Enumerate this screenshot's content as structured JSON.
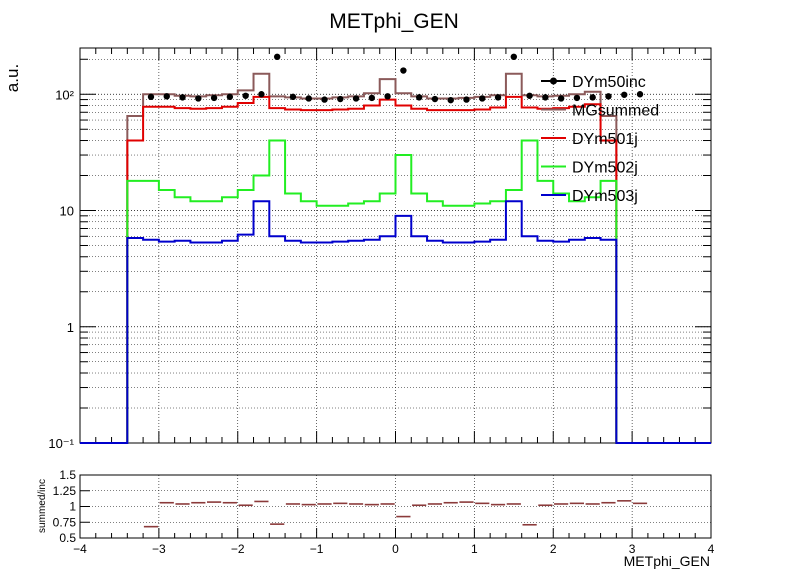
{
  "chart_data": [
    {
      "type": "line",
      "title": "METphi_GEN",
      "ylabel": "a.u.",
      "xlabel": "",
      "xlim": [
        -4,
        4
      ],
      "ylim": [
        0.1,
        250
      ],
      "yscale": "log",
      "grid": true,
      "legend_position": "top-right",
      "x_ticks": [
        -4,
        -3,
        -2,
        -1,
        0,
        1,
        2,
        3,
        4
      ],
      "x_tick_labels": [
        "−4",
        "−3",
        "−2",
        "−1",
        "0",
        "1",
        "2",
        "3",
        "4"
      ],
      "y_ticks": [
        0.1,
        1,
        10,
        100
      ],
      "y_tick_labels": [
        "10⁻¹",
        "1",
        "10",
        "10²"
      ],
      "bin_edges": [
        -4.0,
        -3.8,
        -3.6,
        -3.4,
        -3.2,
        -3.0,
        -2.8,
        -2.6,
        -2.4,
        -2.2,
        -2.0,
        -1.8,
        -1.6,
        -1.4,
        -1.2,
        -1.0,
        -0.8,
        -0.6,
        -0.4,
        -0.2,
        0.0,
        0.2,
        0.4,
        0.6,
        0.8,
        1.0,
        1.2,
        1.4,
        1.6,
        1.8,
        2.0,
        2.2,
        2.4,
        2.6,
        2.8,
        3.0,
        3.2,
        3.4,
        3.6,
        3.8,
        4.0
      ],
      "series": [
        {
          "name": "DYm50inc",
          "color": "#000000",
          "style": "points",
          "x": [
            -3.1,
            -2.9,
            -2.7,
            -2.5,
            -2.3,
            -2.1,
            -1.9,
            -1.7,
            -1.5,
            -1.3,
            -1.1,
            -0.9,
            -0.7,
            -0.5,
            -0.3,
            -0.1,
            0.1,
            0.3,
            0.5,
            0.7,
            0.9,
            1.1,
            1.3,
            1.5,
            1.7,
            1.9,
            2.1,
            2.3,
            2.5,
            2.7,
            2.9,
            3.1
          ],
          "values": [
            95,
            96,
            94,
            92,
            93,
            95,
            97,
            100,
            210,
            95,
            92,
            90,
            91,
            92,
            93,
            96,
            160,
            94,
            91,
            89,
            90,
            92,
            94,
            210,
            97,
            94,
            92,
            93,
            94,
            96,
            99,
            100
          ]
        },
        {
          "name": "MGsummed",
          "color": "#8b5a5a",
          "style": "step",
          "values": [
            0,
            0,
            0,
            65,
            100,
            100,
            97,
            96,
            98,
            100,
            108,
            150,
            96,
            94,
            92,
            92,
            94,
            96,
            102,
            135,
            102,
            96,
            92,
            92,
            93,
            95,
            98,
            150,
            98,
            96,
            97,
            100,
            105,
            65,
            0,
            0,
            0,
            0,
            0,
            0
          ]
        },
        {
          "name": "DYm501j",
          "color": "#e00000",
          "style": "step",
          "values": [
            0,
            0,
            0,
            40,
            78,
            78,
            76,
            75,
            76,
            78,
            84,
            95,
            76,
            74,
            73,
            73,
            74,
            75,
            80,
            90,
            80,
            75,
            73,
            73,
            73,
            74,
            77,
            95,
            77,
            75,
            76,
            78,
            82,
            40,
            0,
            0,
            0,
            0,
            0,
            0
          ]
        },
        {
          "name": "DYm502j",
          "color": "#22ee22",
          "style": "step",
          "values": [
            0,
            0,
            0,
            18,
            18,
            15,
            13,
            12,
            12,
            13,
            15,
            20,
            40,
            14,
            12,
            11,
            11,
            11.5,
            12,
            14,
            30,
            14,
            12,
            11,
            11,
            11.5,
            12,
            15,
            40,
            18,
            14,
            12,
            13,
            18,
            0,
            0,
            0,
            0,
            0,
            0
          ]
        },
        {
          "name": "DYm503j",
          "color": "#0000cc",
          "style": "step",
          "values": [
            0,
            0,
            0,
            5.8,
            5.6,
            5.4,
            5.5,
            5.3,
            5.3,
            5.5,
            6.2,
            12,
            6.0,
            5.5,
            5.3,
            5.3,
            5.4,
            5.5,
            5.6,
            6.0,
            9.0,
            6.0,
            5.5,
            5.3,
            5.3,
            5.4,
            5.6,
            12,
            6.0,
            5.5,
            5.4,
            5.6,
            5.8,
            5.6,
            0,
            0,
            0,
            0,
            0,
            0
          ]
        }
      ]
    },
    {
      "type": "scatter",
      "title": "",
      "xlabel": "METphi_GEN",
      "ylabel": "summed/inc",
      "xlim": [
        -4,
        4
      ],
      "ylim": [
        0.5,
        1.5
      ],
      "grid": true,
      "x_ticks": [
        -4,
        -3,
        -2,
        -1,
        0,
        1,
        2,
        3,
        4
      ],
      "x_tick_labels": [
        "−4",
        "−3",
        "−2",
        "−1",
        "0",
        "1",
        "2",
        "3",
        "4"
      ],
      "y_ticks": [
        0.5,
        0.75,
        1,
        1.25,
        1.5
      ],
      "y_tick_labels": [
        "0.5",
        "0.75",
        "1",
        "1.25",
        "1.5"
      ],
      "series": [
        {
          "name": "",
          "color": "#8b3a3a",
          "x": [
            -3.1,
            -2.9,
            -2.7,
            -2.5,
            -2.3,
            -2.1,
            -1.9,
            -1.7,
            -1.5,
            -1.3,
            -1.1,
            -0.9,
            -0.7,
            -0.5,
            -0.3,
            -0.1,
            0.1,
            0.3,
            0.5,
            0.7,
            0.9,
            1.1,
            1.3,
            1.5,
            1.7,
            1.9,
            2.1,
            2.3,
            2.5,
            2.7,
            2.9,
            3.1
          ],
          "values": [
            0.68,
            1.06,
            1.04,
            1.06,
            1.07,
            1.06,
            1.02,
            1.08,
            0.72,
            1.04,
            1.03,
            1.04,
            1.05,
            1.04,
            1.03,
            1.04,
            0.84,
            1.02,
            1.04,
            1.06,
            1.07,
            1.05,
            1.03,
            1.04,
            0.71,
            1.02,
            1.04,
            1.05,
            1.04,
            1.06,
            1.09,
            1.05
          ]
        }
      ]
    }
  ]
}
